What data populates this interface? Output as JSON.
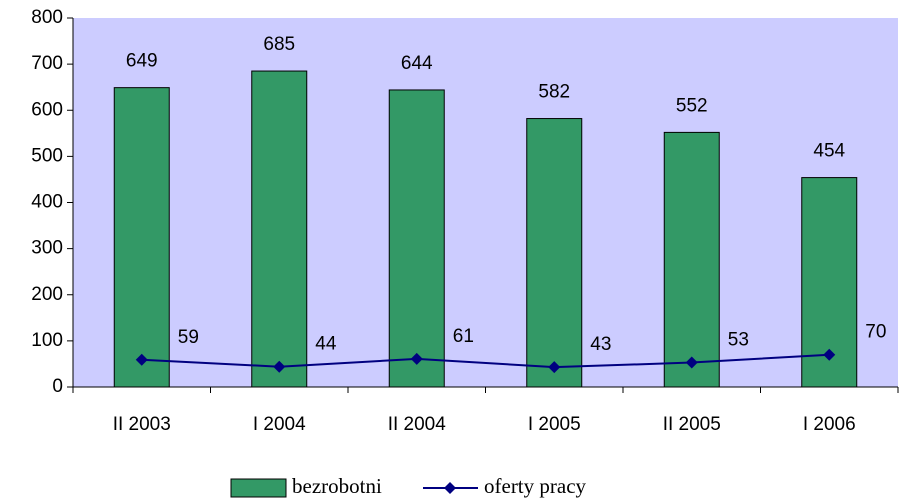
{
  "chart_data": {
    "type": "bar",
    "categories": [
      "II 2003",
      "I 2004",
      "II 2004",
      "I 2005",
      "II 2005",
      "I 2006"
    ],
    "series": [
      {
        "name": "bezrobotni",
        "type": "bar",
        "color": "#339966",
        "values": [
          649,
          685,
          644,
          582,
          552,
          454
        ]
      },
      {
        "name": "oferty pracy",
        "type": "line",
        "color": "#000080",
        "values": [
          59,
          44,
          61,
          43,
          53,
          70
        ]
      }
    ],
    "ylim": [
      0,
      800
    ],
    "yticks": [
      0,
      100,
      200,
      300,
      400,
      500,
      600,
      700,
      800
    ],
    "plot_background": "#ccccff",
    "legend": "bottom"
  }
}
